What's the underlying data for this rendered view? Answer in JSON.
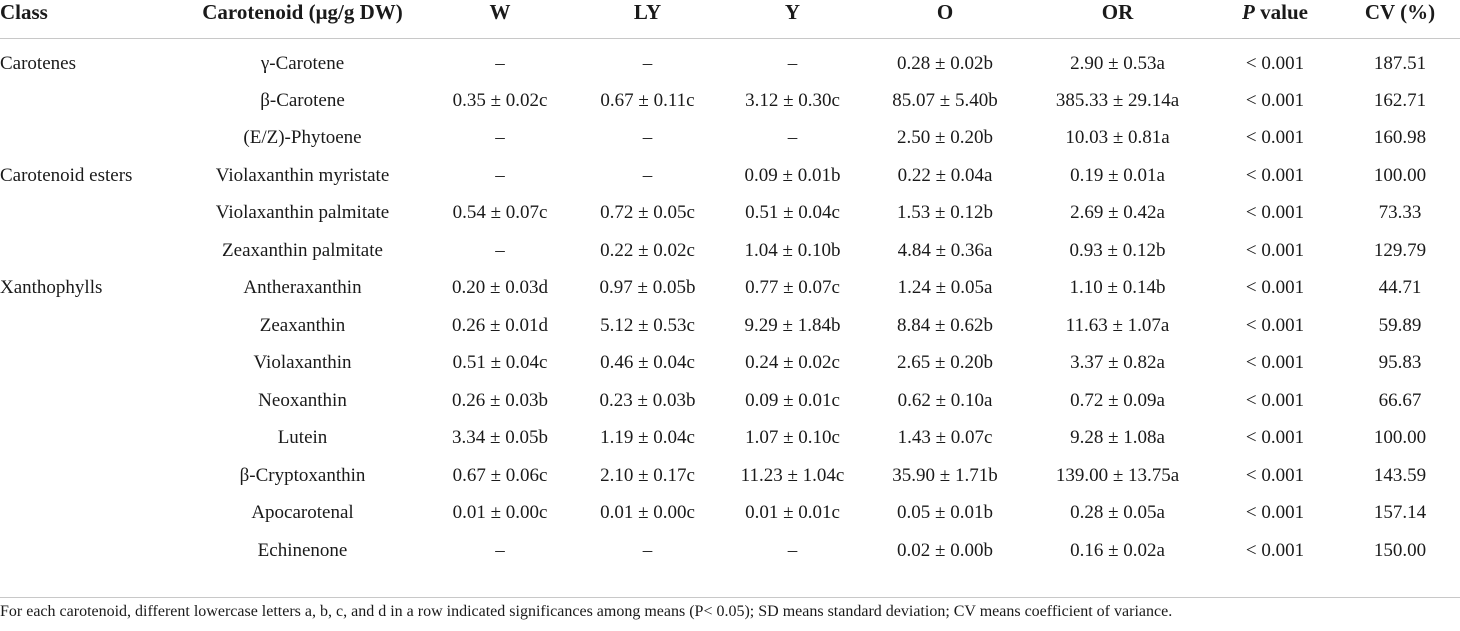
{
  "table": {
    "headers": {
      "class": "Class",
      "carotenoid": "Carotenoid (μg/g DW)",
      "w": "W",
      "ly": "LY",
      "y": "Y",
      "o": "O",
      "or": "OR",
      "p_italic": "P",
      "p_rest": " value",
      "cv": "CV (%)"
    },
    "rows": [
      {
        "class": "Carotenes",
        "carotenoid": "γ-Carotene",
        "w": "–",
        "ly": "–",
        "y": "–",
        "o": "0.28 ± 0.02b",
        "or": "2.90 ± 0.53a",
        "p": "< 0.001",
        "cv": "187.51"
      },
      {
        "class": "",
        "carotenoid": "β-Carotene",
        "w": "0.35 ± 0.02c",
        "ly": "0.67 ± 0.11c",
        "y": "3.12 ± 0.30c",
        "o": "85.07 ± 5.40b",
        "or": "385.33 ± 29.14a",
        "p": "< 0.001",
        "cv": "162.71"
      },
      {
        "class": "",
        "carotenoid": "(E/Z)-Phytoene",
        "w": "–",
        "ly": "–",
        "y": "–",
        "o": "2.50 ± 0.20b",
        "or": "10.03 ± 0.81a",
        "p": "< 0.001",
        "cv": "160.98"
      },
      {
        "class": "Carotenoid esters",
        "carotenoid": "Violaxanthin myristate",
        "w": "–",
        "ly": "–",
        "y": "0.09 ± 0.01b",
        "o": "0.22 ± 0.04a",
        "or": "0.19 ± 0.01a",
        "p": "< 0.001",
        "cv": "100.00"
      },
      {
        "class": "",
        "carotenoid": "Violaxanthin palmitate",
        "w": "0.54 ± 0.07c",
        "ly": "0.72 ± 0.05c",
        "y": "0.51 ± 0.04c",
        "o": "1.53 ± 0.12b",
        "or": "2.69 ± 0.42a",
        "p": "< 0.001",
        "cv": "73.33"
      },
      {
        "class": "",
        "carotenoid": "Zeaxanthin palmitate",
        "w": "–",
        "ly": "0.22 ± 0.02c",
        "y": "1.04 ± 0.10b",
        "o": "4.84 ± 0.36a",
        "or": "0.93 ± 0.12b",
        "p": "< 0.001",
        "cv": "129.79"
      },
      {
        "class": "Xanthophylls",
        "carotenoid": "Antheraxanthin",
        "w": "0.20 ± 0.03d",
        "ly": "0.97 ± 0.05b",
        "y": "0.77 ± 0.07c",
        "o": "1.24 ± 0.05a",
        "or": "1.10 ± 0.14b",
        "p": "< 0.001",
        "cv": "44.71"
      },
      {
        "class": "",
        "carotenoid": "Zeaxanthin",
        "w": "0.26 ± 0.01d",
        "ly": "5.12 ± 0.53c",
        "y": "9.29 ± 1.84b",
        "o": "8.84 ± 0.62b",
        "or": "11.63 ± 1.07a",
        "p": "< 0.001",
        "cv": "59.89"
      },
      {
        "class": "",
        "carotenoid": "Violaxanthin",
        "w": "0.51 ± 0.04c",
        "ly": "0.46 ± 0.04c",
        "y": "0.24 ± 0.02c",
        "o": "2.65 ± 0.20b",
        "or": "3.37 ± 0.82a",
        "p": "< 0.001",
        "cv": "95.83"
      },
      {
        "class": "",
        "carotenoid": "Neoxanthin",
        "w": "0.26 ± 0.03b",
        "ly": "0.23 ± 0.03b",
        "y": "0.09 ± 0.01c",
        "o": "0.62 ± 0.10a",
        "or": "0.72 ± 0.09a",
        "p": "< 0.001",
        "cv": "66.67"
      },
      {
        "class": "",
        "carotenoid": "Lutein",
        "w": "3.34 ± 0.05b",
        "ly": "1.19 ± 0.04c",
        "y": "1.07 ± 0.10c",
        "o": "1.43 ± 0.07c",
        "or": "9.28 ± 1.08a",
        "p": "< 0.001",
        "cv": "100.00"
      },
      {
        "class": "",
        "carotenoid": "β-Cryptoxanthin",
        "w": "0.67 ± 0.06c",
        "ly": "2.10 ± 0.17c",
        "y": "11.23 ± 1.04c",
        "o": "35.90 ± 1.71b",
        "or": "139.00 ± 13.75a",
        "p": "< 0.001",
        "cv": "143.59"
      },
      {
        "class": "",
        "carotenoid": "Apocarotenal",
        "w": "0.01 ± 0.00c",
        "ly": "0.01 ± 0.00c",
        "y": "0.01 ± 0.01c",
        "o": "0.05 ± 0.01b",
        "or": "0.28 ± 0.05a",
        "p": "< 0.001",
        "cv": "157.14"
      },
      {
        "class": "",
        "carotenoid": "Echinenone",
        "w": "–",
        "ly": "–",
        "y": "–",
        "o": "0.02 ± 0.00b",
        "or": "0.16 ± 0.02a",
        "p": "< 0.001",
        "cv": "150.00"
      }
    ]
  },
  "footnote": "For each carotenoid, different lowercase letters a, b, c, and d in a row indicated significances among means (P< 0.05); SD means standard deviation; CV means coefficient of variance."
}
